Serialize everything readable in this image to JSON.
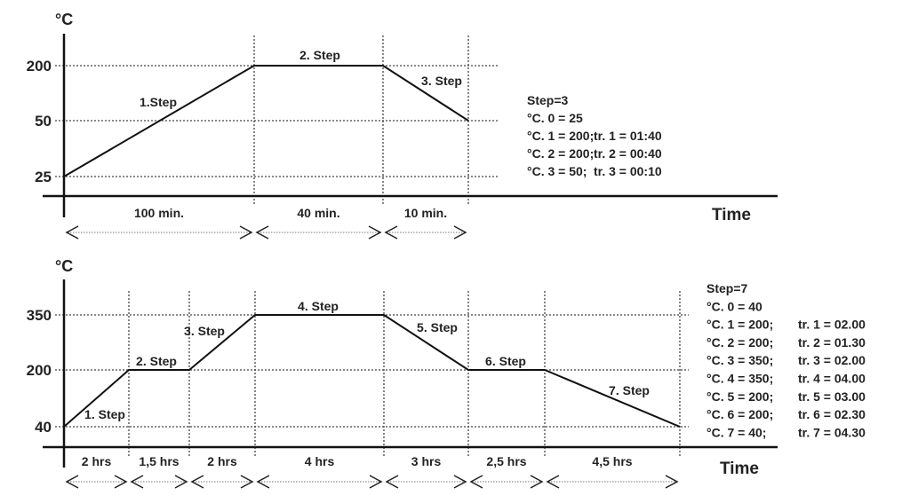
{
  "charts": [
    {
      "y_unit": "°C",
      "x_label": "Time",
      "y_ticks": [
        "200",
        "50",
        "25"
      ],
      "levels": [
        25,
        200,
        200,
        50
      ],
      "step_labels": [
        "1.Step",
        "2. Step",
        "3. Step"
      ],
      "durations": [
        "100 min.",
        "40 min.",
        "10 min."
      ],
      "info": {
        "title": "Step=3",
        "temps": [
          "°C. 0 = 25",
          "°C. 1 = 200;",
          "°C. 2 = 200;",
          "°C. 3 = 50;"
        ],
        "times": [
          "",
          "tr. 1 = 01:40",
          "tr. 2 = 00:40",
          "tr. 3 = 00:10"
        ]
      }
    },
    {
      "y_unit": "°C",
      "x_label": "Time",
      "y_ticks": [
        "350",
        "200",
        "40"
      ],
      "levels": [
        40,
        200,
        200,
        350,
        350,
        200,
        200,
        40
      ],
      "step_labels": [
        "1. Step",
        "2. Step",
        "3. Step",
        "4. Step",
        "5. Step",
        "6. Step",
        "7. Step"
      ],
      "durations": [
        "2 hrs",
        "1,5 hrs",
        "2 hrs",
        "4 hrs",
        "3 hrs",
        "2,5 hrs",
        "4,5 hrs"
      ],
      "info": {
        "title": "Step=7",
        "temps": [
          "°C. 0 = 40",
          "°C. 1 = 200;",
          "°C. 2 = 200;",
          "°C. 3 = 350;",
          "°C. 4 = 350;",
          "°C. 5 = 200;",
          "°C. 6 = 200;",
          "°C. 7 = 40;"
        ],
        "times": [
          "",
          "tr. 1 = 02.00",
          "tr. 2 = 01.30",
          "tr. 3 = 02.00",
          "tr. 4 = 04.00",
          "tr. 5 = 03.00",
          "tr. 6 = 02.30",
          "tr. 7 = 04.30"
        ]
      }
    }
  ]
}
